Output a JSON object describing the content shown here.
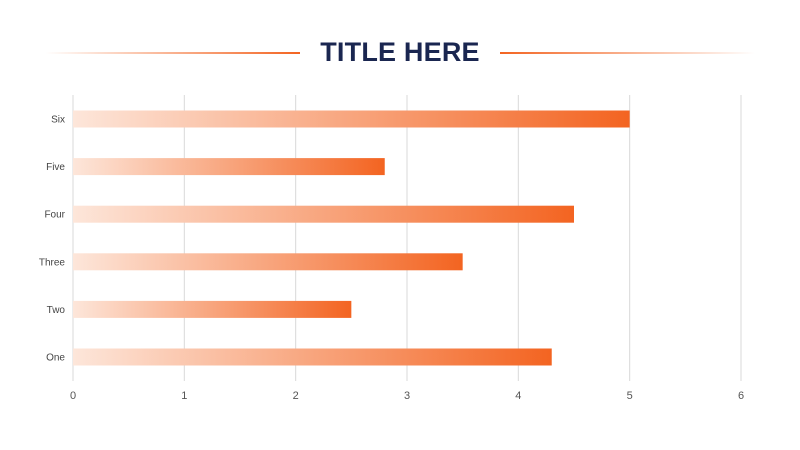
{
  "title": "TITLE HERE",
  "colors": {
    "title": "#1a2650",
    "bar_start": "#fde6da",
    "bar_end": "#f36421",
    "grid": "#d9d9d9",
    "rule": "#f36421"
  },
  "chart_data": {
    "type": "bar",
    "orientation": "horizontal",
    "title": "TITLE HERE",
    "categories": [
      "One",
      "Two",
      "Three",
      "Four",
      "Five",
      "Six"
    ],
    "values": [
      4.3,
      2.5,
      3.5,
      4.5,
      2.8,
      5.0
    ],
    "xlim": [
      0,
      6
    ],
    "x_ticks": [
      0,
      1,
      2,
      3,
      4,
      5,
      6
    ],
    "xlabel": "",
    "ylabel": "",
    "grid": "vertical",
    "legend": "none"
  }
}
